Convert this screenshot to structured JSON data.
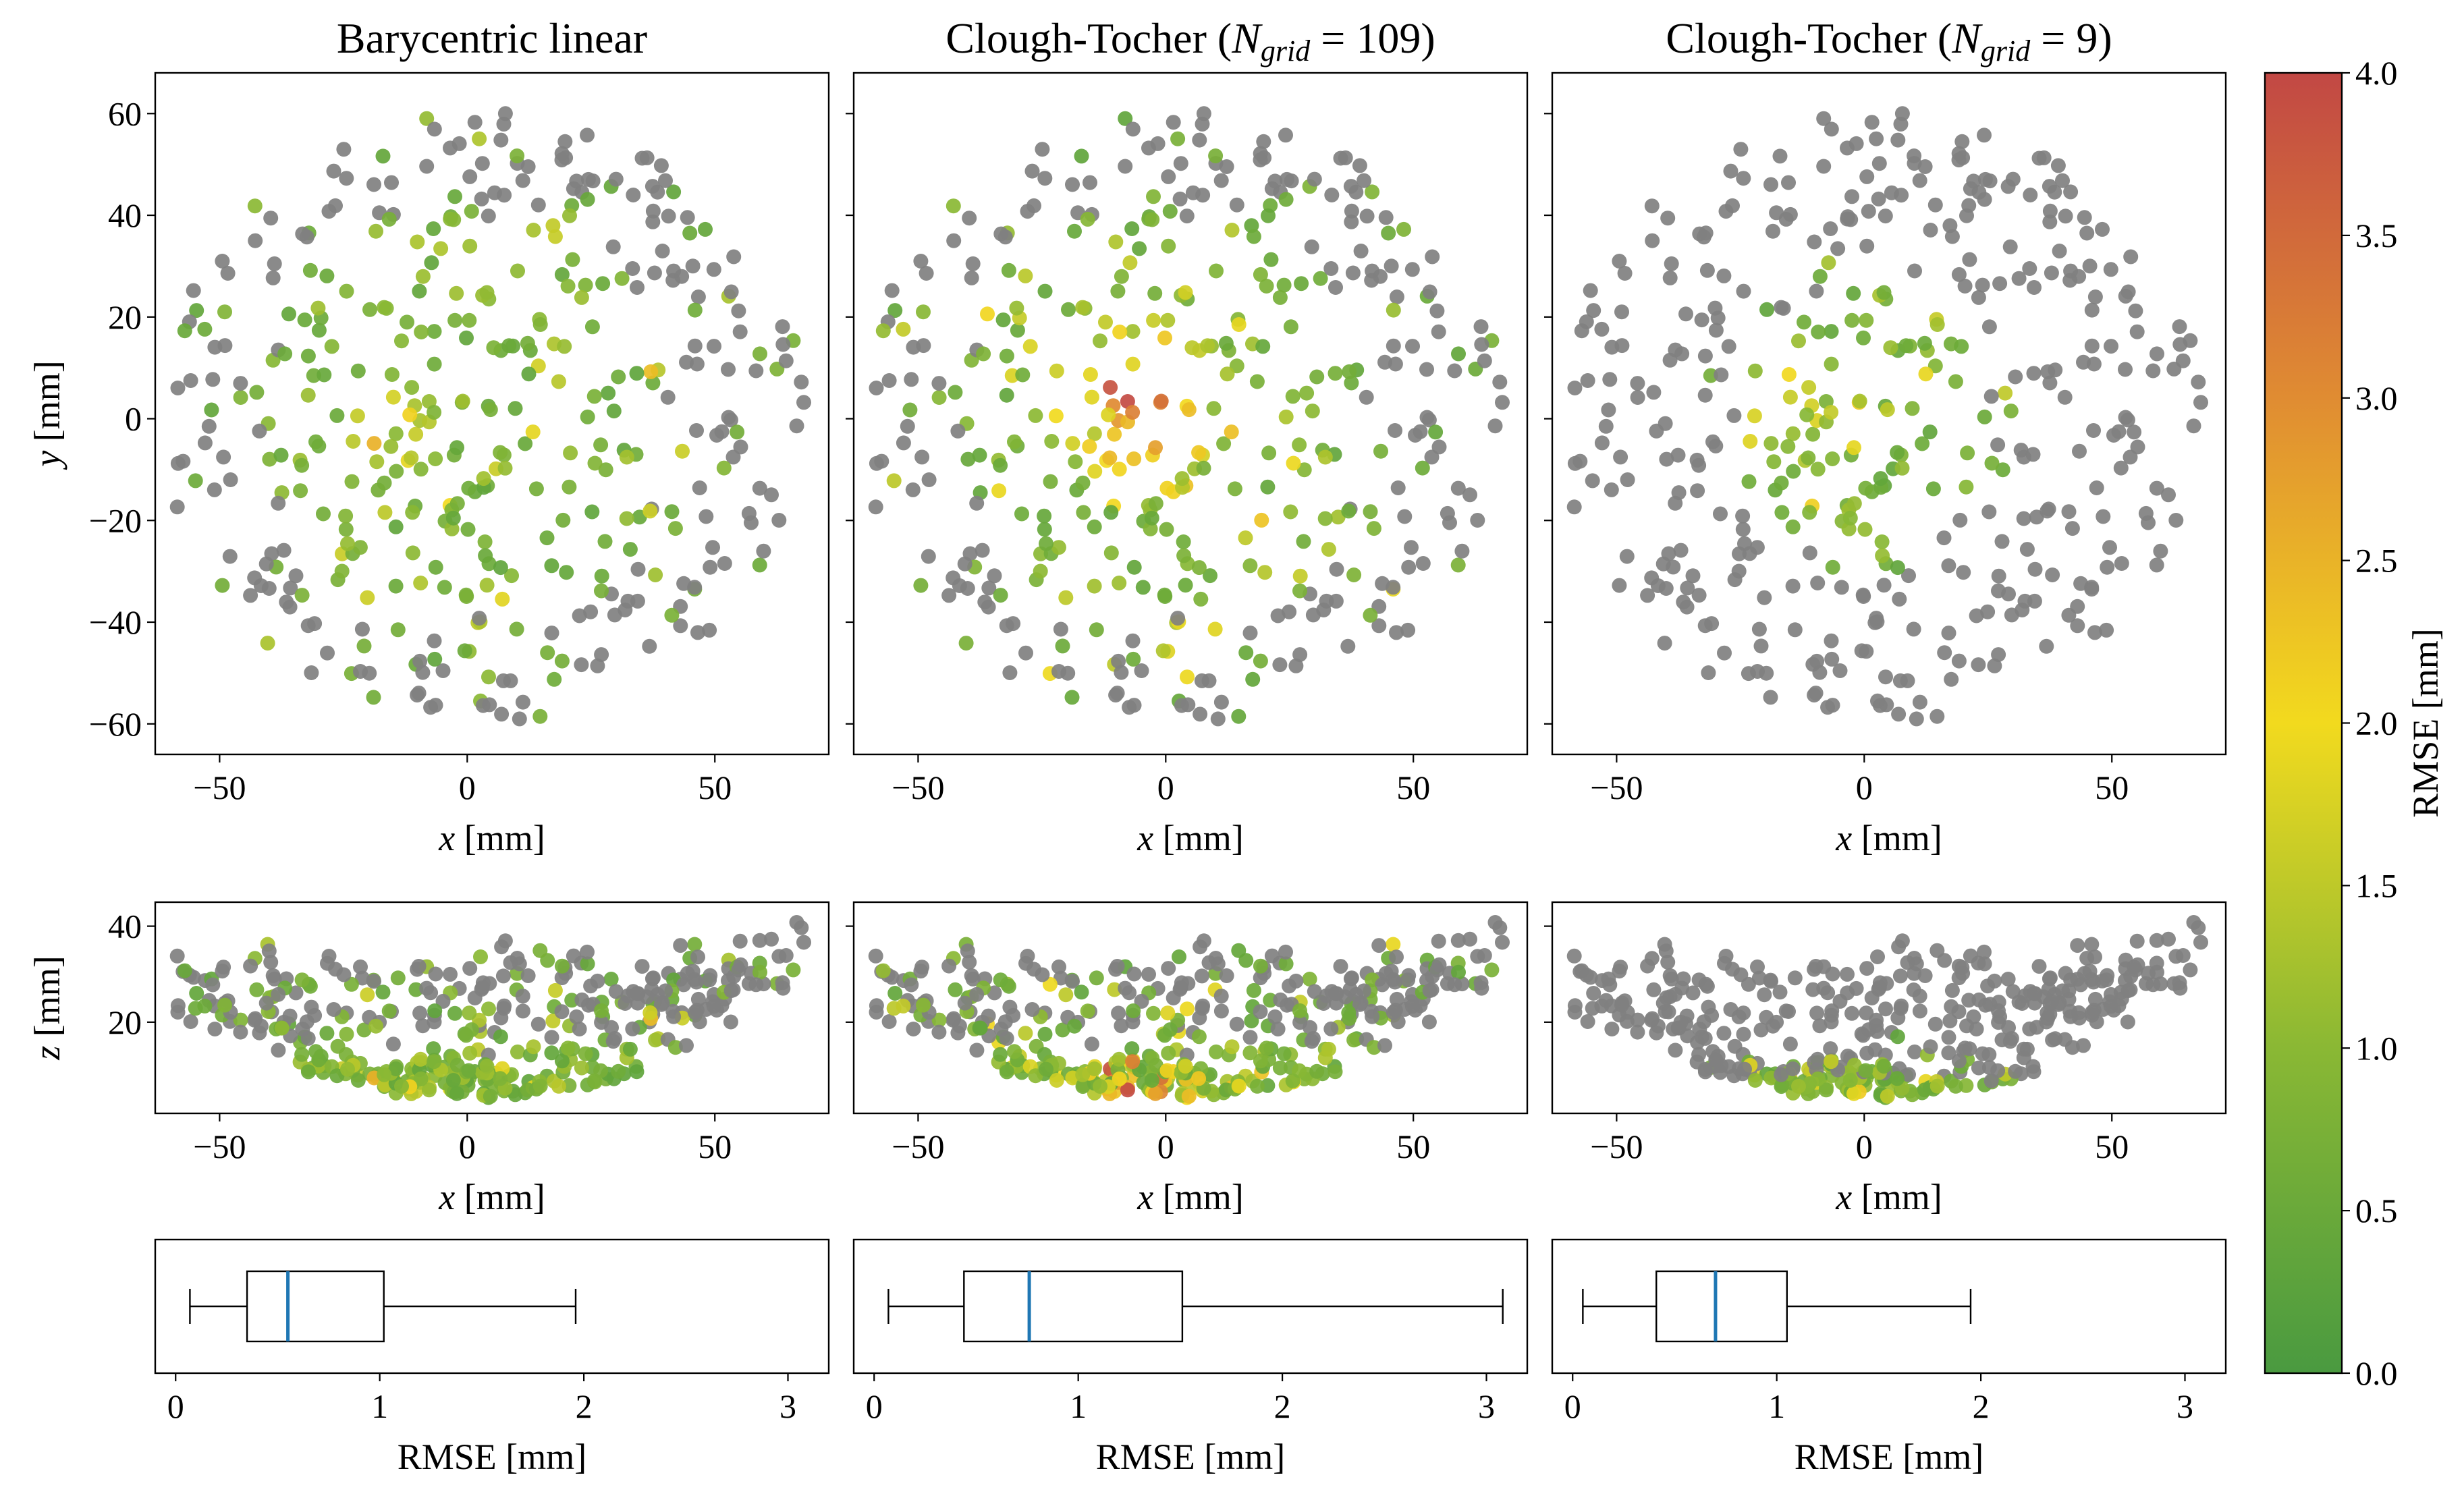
{
  "chart_data": {
    "type": "scatter",
    "columns": [
      {
        "title_text": "Barycentric linear",
        "title_math": "",
        "title_close": "",
        "seed": 11,
        "hot_center": [
          -15,
          -2
        ],
        "hot_radius": 14,
        "hot_boost": 0.9,
        "gray_pattern": "outer"
      },
      {
        "title_text": "Clough-Tocher (",
        "title_math": "N_grid = 109",
        "title_close": ")",
        "seed": 23,
        "hot_center": [
          -5,
          4
        ],
        "hot_radius": 22,
        "hot_boost": 2.6,
        "gray_pattern": "outer"
      },
      {
        "title_text": "Clough-Tocher (",
        "title_math": "N_grid = 9",
        "title_close": ")",
        "seed": 37,
        "hot_center": [
          -12,
          2
        ],
        "hot_radius": 16,
        "hot_boost": 0.9,
        "gray_pattern": "ring"
      }
    ],
    "xy_panel": {
      "xlabel_var": "x",
      "xlabel_unit": "[mm]",
      "ylabel_var": "y",
      "ylabel_unit": "[mm]",
      "xlim": [
        -63,
        73
      ],
      "ylim": [
        -66,
        68
      ],
      "xticks": [
        -50,
        0,
        50
      ],
      "yticks": [
        -60,
        -40,
        -20,
        0,
        20,
        40,
        60
      ]
    },
    "xz_panel": {
      "xlabel_var": "x",
      "xlabel_unit": "[mm]",
      "ylabel_var": "z",
      "ylabel_unit": "[mm]",
      "xlim": [
        -63,
        73
      ],
      "ylim": [
        1,
        45
      ],
      "xticks": [
        -50,
        0,
        50
      ],
      "yticks": [
        20,
        40
      ]
    },
    "box_panel": {
      "xlabel": "RMSE [mm]",
      "xlim": [
        -0.1,
        3.2
      ],
      "xticks": [
        0,
        1,
        2,
        3
      ],
      "boxes": [
        {
          "whisker_low": 0.07,
          "q1": 0.35,
          "median": 0.55,
          "q3": 1.02,
          "whisker_high": 1.96
        },
        {
          "whisker_low": 0.07,
          "q1": 0.44,
          "median": 0.76,
          "q3": 1.51,
          "whisker_high": 3.08
        },
        {
          "whisker_low": 0.05,
          "q1": 0.41,
          "median": 0.7,
          "q3": 1.05,
          "whisker_high": 1.95
        }
      ]
    },
    "colorbar": {
      "label": "RMSE [mm]",
      "min": 0.0,
      "max": 4.0,
      "ticks": [
        "0.0",
        "0.5",
        "1.0",
        "1.5",
        "2.0",
        "2.5",
        "3.0",
        "3.5",
        "4.0"
      ],
      "colors": [
        "#4a9a40",
        "#8ab834",
        "#f2da1e",
        "#e08c32",
        "#c24844"
      ]
    },
    "gray_color": "#808080",
    "points_per_panel": 420
  }
}
